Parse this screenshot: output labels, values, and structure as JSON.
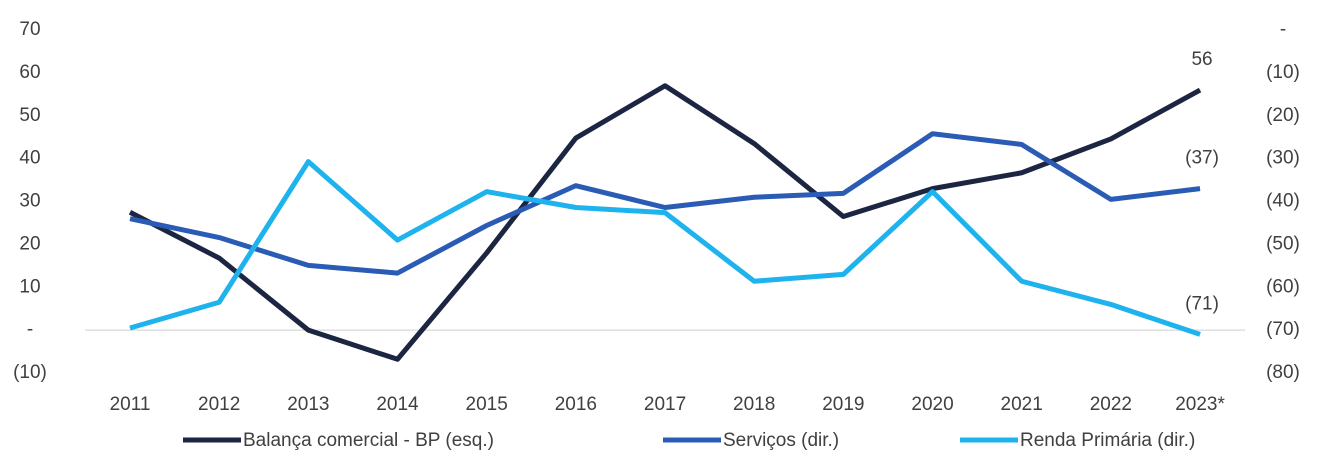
{
  "chart_data": {
    "type": "line",
    "categories": [
      "2011",
      "2012",
      "2013",
      "2014",
      "2015",
      "2016",
      "2017",
      "2018",
      "2019",
      "2020",
      "2021",
      "2022",
      "2023*"
    ],
    "series": [
      {
        "name": "Balança comercial - BP (esq.)",
        "color": "#1c2541",
        "values": [
          27.5,
          16.8,
          0,
          -6.8,
          18,
          44.8,
          57,
          43.5,
          26.5,
          33,
          36.7,
          44.6,
          56
        ],
        "value_labels": [
          null,
          null,
          null,
          null,
          null,
          null,
          null,
          null,
          null,
          null,
          null,
          null,
          "56"
        ]
      },
      {
        "name": "Serviços (dir.)",
        "color": "#2a5bb5",
        "axis": "y2",
        "values": [
          -44,
          -48.4,
          -54.9,
          -56.7,
          -45.6,
          -36.3,
          -41.4,
          -39,
          -38.1,
          -24.2,
          -26.7,
          -39.5,
          -37
        ],
        "value_labels": [
          null,
          null,
          null,
          null,
          null,
          null,
          null,
          null,
          null,
          null,
          null,
          null,
          "(37)"
        ]
      },
      {
        "name": "Renda Primária (dir.)",
        "color": "#1fb3ee",
        "axis": "y2",
        "values": [
          -69.5,
          -63.5,
          -30.7,
          -49,
          -37.7,
          -41.4,
          -42.6,
          -58.6,
          -57,
          -37.7,
          -58.6,
          -64,
          -71
        ],
        "value_labels": [
          null,
          null,
          null,
          null,
          null,
          null,
          null,
          null,
          null,
          null,
          null,
          null,
          "(71)"
        ]
      }
    ],
    "ylim": [
      -10,
      70
    ],
    "yticks": [
      70,
      60,
      50,
      40,
      30,
      20,
      10,
      {
        "value": 0,
        "label": "-"
      },
      {
        "value": -10,
        "label": "(10)"
      }
    ],
    "y2lim": [
      -80,
      0
    ],
    "y2ticks": [
      {
        "value": 0,
        "label": "-"
      },
      {
        "value": -10,
        "label": "(10)"
      },
      {
        "value": -20,
        "label": "(20)"
      },
      {
        "value": -30,
        "label": "(30)"
      },
      {
        "value": -40,
        "label": "(40)"
      },
      {
        "value": -50,
        "label": "(50)"
      },
      {
        "value": -60,
        "label": "(60)"
      },
      {
        "value": -70,
        "label": "(70)"
      },
      {
        "value": -80,
        "label": "(80)"
      }
    ],
    "legend": "bottom"
  }
}
